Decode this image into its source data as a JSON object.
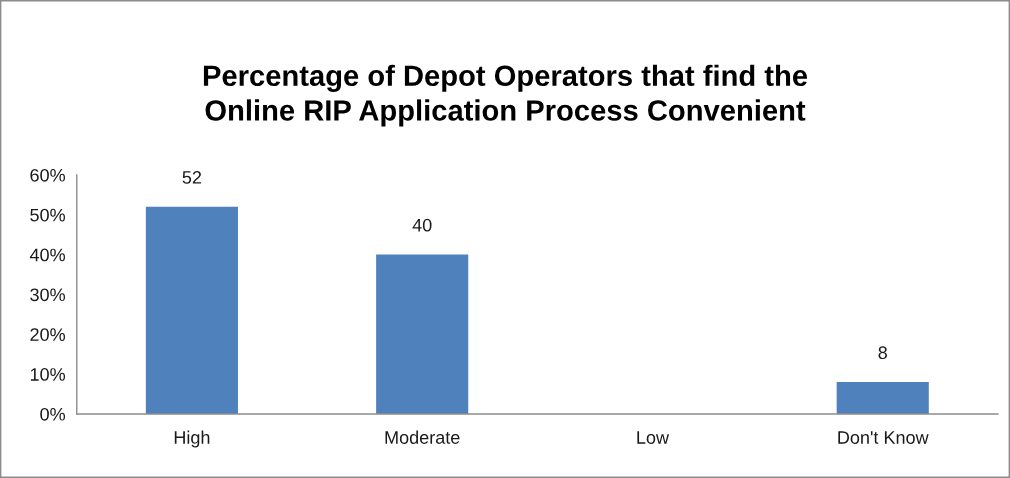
{
  "chart_data": {
    "type": "bar",
    "title": "Percentage of Depot Operators that find the\nOnline RIP Application Process Convenient",
    "categories": [
      "High",
      "Moderate",
      "Low",
      "Don't Know"
    ],
    "values": [
      52,
      40,
      null,
      8
    ],
    "color": "#4f81bd",
    "ylim": [
      0,
      60
    ],
    "yticks": [
      {
        "value": 0,
        "label": "0%"
      },
      {
        "value": 10,
        "label": "10%"
      },
      {
        "value": 20,
        "label": "20%"
      },
      {
        "value": 30,
        "label": "30%"
      },
      {
        "value": 40,
        "label": "40%"
      },
      {
        "value": 50,
        "label": "50%"
      },
      {
        "value": 60,
        "label": "60%"
      }
    ],
    "data_labels": true
  }
}
